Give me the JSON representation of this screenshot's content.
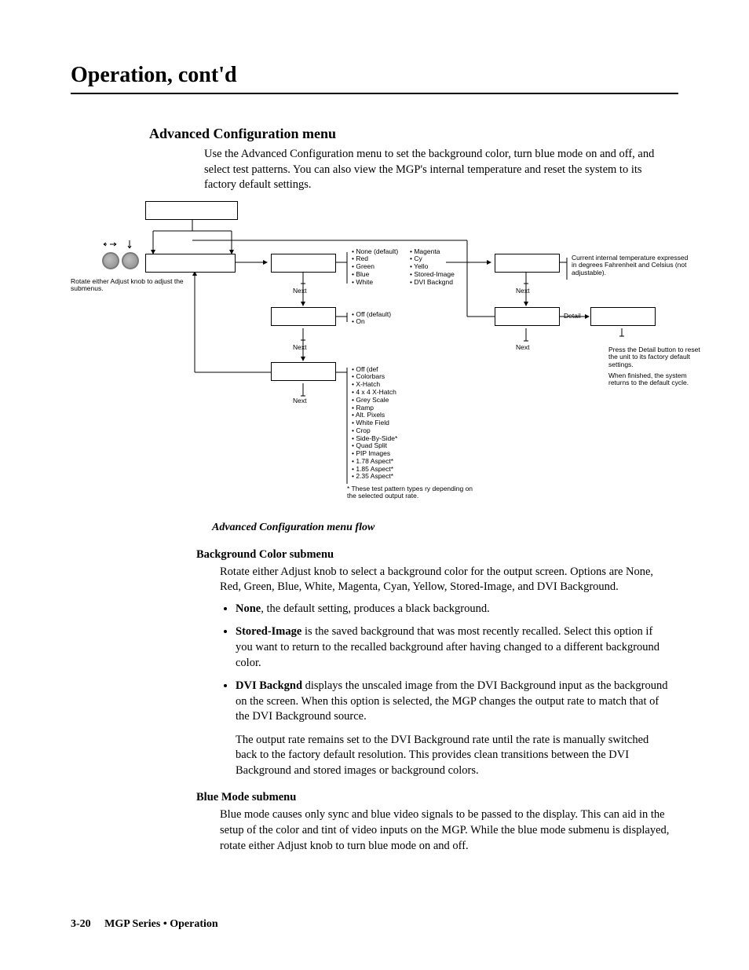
{
  "chapter_title": "Operation, cont'd",
  "section_title": "Advanced Configuration menu",
  "intro_text": "Use the Advanced Configuration menu to set the background color, turn blue mode on and off, and select test patterns.  You can also view the MGP's internal temperature and reset the system to its factory default settings.",
  "diagram": {
    "knob_note": "Rotate either Adjust knob to adjust the submenus.",
    "next_label": "Next",
    "detail_label": "Detail",
    "bg_colors_col1": [
      "None (default)",
      "Red",
      "Green",
      "Blue",
      "White"
    ],
    "bg_colors_col2": [
      "Magenta",
      "Cy",
      "Yello",
      "Stored-Image",
      "DVI Backgnd"
    ],
    "blue_mode_opts": [
      "Off (default)",
      "On"
    ],
    "test_patterns": [
      "Off (def",
      "Colorbars",
      "X-Hatch",
      "4 x 4 X-Hatch",
      "Grey Scale",
      "Ramp",
      "Alt. Pixels",
      "White Field",
      "Crop",
      "Side-By-Side*",
      "Quad Split",
      "PIP  Images",
      "1.78 Aspect*",
      "1.85 Aspect*",
      "2.35 Aspect*"
    ],
    "tp_footnote": "*  These test pattern types     ry depending on the selected output rate.",
    "temp_note": "Current internal temperature expressed in degrees Fahrenheit and Celsius (not adjustable).",
    "reset_note": "Press the Detail button to reset the unit to its factory default settings.",
    "reset_note2": "When finished, the system returns to the default cycle."
  },
  "caption": "Advanced Configuration menu flow",
  "sub1": {
    "title": "Background Color submenu",
    "p1": "Rotate either Adjust knob to select a background color for the output screen.  Options are None, Red, Green, Blue, White, Magenta, Cyan, Yellow, Stored-Image, and DVI Background.",
    "b1_lead": "None",
    "b1_rest": ", the default setting, produces a black background.",
    "b2_lead": "Stored-Image",
    "b2_rest": " is the saved background that was most recently recalled.  Select this option if you want to return to the recalled background after having changed to a different background color.",
    "b3_lead": "DVI Backgnd",
    "b3_rest": " displays the unscaled image from the DVI Background input as the background on the screen.  When this option is selected, the MGP changes the output rate to match that of the DVI Background source.",
    "b3_p2": "The output rate remains set to the DVI Background rate until the rate is manually switched back to the factory default resolution.  This provides clean transitions between the DVI Background and stored images or background colors."
  },
  "sub2": {
    "title": "Blue Mode submenu",
    "p1": "Blue mode causes only sync and blue video signals to be passed to the display.  This can aid in the setup of the color and tint of video inputs on the MGP.  While the blue mode submenu is displayed, rotate either Adjust knob to turn blue mode on and off."
  },
  "footer": {
    "page": "3-20",
    "section": "MGP Series • Operation"
  }
}
